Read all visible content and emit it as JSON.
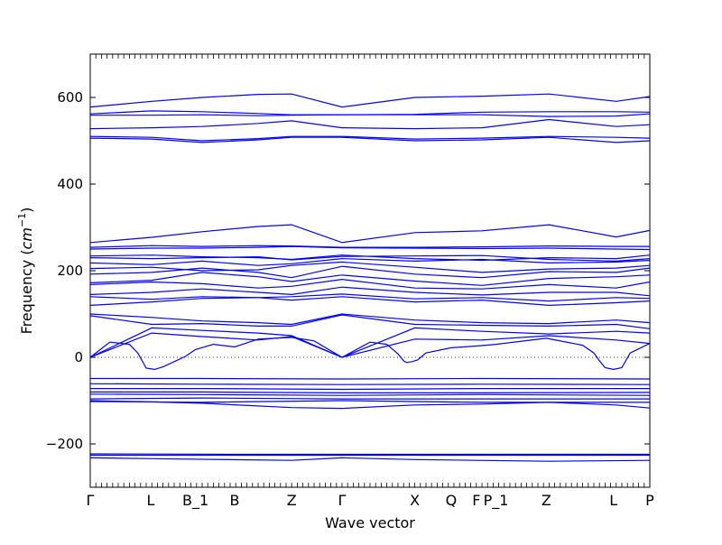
{
  "chart_data": {
    "type": "line",
    "title": "",
    "xlabel": "Wave vector",
    "ylabel_main": "Frequency (",
    "ylabel_unit": "cm",
    "ylabel_exp": "−1",
    "ylabel_close": ")",
    "ylim": [
      -300,
      700
    ],
    "yticks": [
      -200,
      0,
      200,
      400,
      600
    ],
    "ytick_labels": [
      "−200",
      "0",
      "200",
      "400",
      "600"
    ],
    "x_ticks": [
      {
        "x": 0.0,
        "label": "Γ"
      },
      {
        "x": 0.108,
        "label": "L"
      },
      {
        "x": 0.188,
        "label": "B_1"
      },
      {
        "x": 0.258,
        "label": "B"
      },
      {
        "x": 0.36,
        "label": "Z"
      },
      {
        "x": 0.45,
        "label": "Γ"
      },
      {
        "x": 0.58,
        "label": "X"
      },
      {
        "x": 0.645,
        "label": "Q"
      },
      {
        "x": 0.69,
        "label": "F"
      },
      {
        "x": 0.725,
        "label": "P_1"
      },
      {
        "x": 0.815,
        "label": "Z"
      },
      {
        "x": 0.935,
        "label": "L"
      },
      {
        "x": 1.0,
        "label": "P"
      }
    ],
    "zero_line": true,
    "line_color": "#0000ff",
    "series": [
      {
        "x": [
          0,
          0.11,
          0.2,
          0.3,
          0.36,
          0.45,
          0.58,
          0.7,
          0.82,
          0.94,
          1
        ],
        "y": [
          578,
          591,
          600,
          607,
          608,
          578,
          600,
          603,
          608,
          591,
          602
        ]
      },
      {
        "x": [
          0,
          0.11,
          0.2,
          0.3,
          0.36,
          0.45,
          0.58,
          0.7,
          0.82,
          0.94,
          1
        ],
        "y": [
          562,
          569,
          567,
          563,
          560,
          560,
          561,
          566,
          567,
          567,
          566
        ]
      },
      {
        "x": [
          0,
          0.11,
          0.2,
          0.3,
          0.36,
          0.45,
          0.58,
          0.7,
          0.82,
          0.94,
          1
        ],
        "y": [
          559,
          559,
          560,
          558,
          559,
          560,
          560,
          560,
          556,
          557,
          562
        ]
      },
      {
        "x": [
          0,
          0.11,
          0.2,
          0.3,
          0.36,
          0.45,
          0.58,
          0.7,
          0.82,
          0.94,
          1
        ],
        "y": [
          528,
          530,
          533,
          540,
          546,
          530,
          528,
          530,
          549,
          533,
          537
        ]
      },
      {
        "x": [
          0,
          0.11,
          0.2,
          0.3,
          0.36,
          0.45,
          0.58,
          0.7,
          0.82,
          0.94,
          1
        ],
        "y": [
          510,
          508,
          500,
          505,
          510,
          510,
          504,
          506,
          510,
          508,
          506
        ]
      },
      {
        "x": [
          0,
          0.11,
          0.2,
          0.3,
          0.36,
          0.45,
          0.58,
          0.7,
          0.82,
          0.94,
          1
        ],
        "y": [
          506,
          504,
          496,
          502,
          508,
          508,
          500,
          502,
          508,
          496,
          500
        ]
      },
      {
        "x": [
          0,
          0.11,
          0.2,
          0.3,
          0.36,
          0.45,
          0.58,
          0.7,
          0.82,
          0.94,
          1
        ],
        "y": [
          265,
          277,
          290,
          302,
          306,
          265,
          288,
          292,
          306,
          278,
          293
        ]
      },
      {
        "x": [
          0,
          0.11,
          0.2,
          0.3,
          0.36,
          0.45,
          0.58,
          0.7,
          0.82,
          0.94,
          1
        ],
        "y": [
          254,
          258,
          256,
          258,
          257,
          254,
          254,
          255,
          257,
          256,
          256
        ]
      },
      {
        "x": [
          0,
          0.11,
          0.2,
          0.3,
          0.36,
          0.45,
          0.58,
          0.7,
          0.82,
          0.94,
          1
        ],
        "y": [
          250,
          252,
          252,
          254,
          256,
          253,
          252,
          251,
          252,
          250,
          249
        ]
      },
      {
        "x": [
          0,
          0.11,
          0.2,
          0.3,
          0.36,
          0.45,
          0.58,
          0.7,
          0.82,
          0.94,
          1
        ],
        "y": [
          234,
          236,
          232,
          230,
          226,
          236,
          228,
          224,
          230,
          228,
          236
        ]
      },
      {
        "x": [
          0,
          0.11,
          0.2,
          0.3,
          0.36,
          0.45,
          0.58,
          0.7,
          0.82,
          0.94,
          1
        ],
        "y": [
          230,
          228,
          230,
          232,
          225,
          233,
          234,
          235,
          226,
          222,
          228
        ]
      },
      {
        "x": [
          0,
          0.11,
          0.2,
          0.3,
          0.36,
          0.45,
          0.58,
          0.7,
          0.82,
          0.94,
          1
        ],
        "y": [
          218,
          214,
          222,
          212,
          216,
          228,
          222,
          226,
          218,
          220,
          224
        ]
      },
      {
        "x": [
          0,
          0.11,
          0.2,
          0.3,
          0.36,
          0.45,
          0.58,
          0.7,
          0.82,
          0.94,
          1
        ],
        "y": [
          205,
          208,
          200,
          202,
          212,
          220,
          208,
          196,
          204,
          206,
          212
        ]
      },
      {
        "x": [
          0,
          0.11,
          0.2,
          0.3,
          0.36,
          0.45,
          0.58,
          0.7,
          0.82,
          0.94,
          1
        ],
        "y": [
          192,
          196,
          206,
          196,
          184,
          210,
          192,
          184,
          198,
          196,
          206
        ]
      },
      {
        "x": [
          0,
          0.11,
          0.2,
          0.3,
          0.36,
          0.45,
          0.58,
          0.7,
          0.82,
          0.94,
          1
        ],
        "y": [
          172,
          178,
          196,
          186,
          175,
          190,
          176,
          166,
          182,
          186,
          190
        ]
      },
      {
        "x": [
          0,
          0.11,
          0.2,
          0.3,
          0.36,
          0.45,
          0.58,
          0.7,
          0.82,
          0.94,
          1
        ],
        "y": [
          168,
          174,
          170,
          160,
          164,
          180,
          160,
          158,
          168,
          160,
          174
        ]
      },
      {
        "x": [
          0,
          0.11,
          0.2,
          0.3,
          0.36,
          0.45,
          0.58,
          0.7,
          0.82,
          0.94,
          1
        ],
        "y": [
          145,
          150,
          158,
          150,
          145,
          162,
          150,
          144,
          150,
          150,
          142
        ]
      },
      {
        "x": [
          0,
          0.11,
          0.2,
          0.3,
          0.36,
          0.45,
          0.58,
          0.7,
          0.82,
          0.94,
          1
        ],
        "y": [
          140,
          134,
          140,
          138,
          140,
          146,
          135,
          138,
          130,
          138,
          136
        ]
      },
      {
        "x": [
          0,
          0.11,
          0.2,
          0.3,
          0.36,
          0.45,
          0.58,
          0.7,
          0.82,
          0.94,
          1
        ],
        "y": [
          120,
          128,
          136,
          138,
          132,
          140,
          128,
          132,
          120,
          126,
          130
        ]
      },
      {
        "x": [
          0,
          0.11,
          0.2,
          0.3,
          0.36,
          0.45,
          0.58,
          0.7,
          0.82,
          0.94,
          1
        ],
        "y": [
          100,
          92,
          84,
          80,
          76,
          100,
          86,
          80,
          78,
          86,
          80
        ]
      },
      {
        "x": [
          0,
          0.11,
          0.2,
          0.3,
          0.36,
          0.45,
          0.58,
          0.7,
          0.82,
          0.94,
          1
        ],
        "y": [
          96,
          76,
          78,
          72,
          72,
          98,
          76,
          74,
          72,
          76,
          66
        ]
      },
      {
        "x": [
          0,
          0.11,
          0.2,
          0.3,
          0.36,
          0.45,
          0.58,
          0.7,
          0.82,
          0.94,
          1
        ],
        "y": [
          0,
          68,
          62,
          56,
          50,
          0,
          68,
          60,
          54,
          60,
          56
        ]
      },
      {
        "x": [
          0,
          0.11,
          0.2,
          0.3,
          0.36,
          0.45,
          0.58,
          0.7,
          0.82,
          0.94,
          1
        ],
        "y": [
          0,
          56,
          48,
          40,
          48,
          0,
          42,
          40,
          50,
          40,
          32
        ]
      },
      {
        "x": [
          0,
          0.035,
          0.07,
          0.085,
          0.1,
          0.115,
          0.13,
          0.15,
          0.17,
          0.188,
          0.22,
          0.258,
          0.3,
          0.36,
          0.4,
          0.45,
          0.5,
          0.53,
          0.55,
          0.56,
          0.565,
          0.575,
          0.585,
          0.6,
          0.645,
          0.69,
          0.725,
          0.815,
          0.88,
          0.9,
          0.91,
          0.92,
          0.935,
          0.95,
          0.965,
          1
        ],
        "y": [
          0,
          35,
          30,
          10,
          -25,
          -28,
          -22,
          -10,
          2,
          18,
          30,
          24,
          42,
          46,
          38,
          0,
          35,
          30,
          8,
          -8,
          -12,
          -10,
          -6,
          10,
          22,
          26,
          30,
          44,
          28,
          10,
          -8,
          -24,
          -28,
          -24,
          10,
          32
        ]
      },
      {
        "x": [
          0,
          0.2,
          0.45,
          0.7,
          1
        ],
        "y": [
          -49,
          -49,
          -50,
          -49,
          -50
        ]
      },
      {
        "x": [
          0,
          0.2,
          0.45,
          0.7,
          1
        ],
        "y": [
          -61,
          -62,
          -63,
          -62,
          -63
        ]
      },
      {
        "x": [
          0,
          0.2,
          0.45,
          0.7,
          1
        ],
        "y": [
          -72,
          -72,
          -74,
          -72,
          -72
        ]
      },
      {
        "x": [
          0,
          0.2,
          0.45,
          0.7,
          1
        ],
        "y": [
          -80,
          -80,
          -82,
          -82,
          -81
        ]
      },
      {
        "x": [
          0,
          0.2,
          0.45,
          0.7,
          1
        ],
        "y": [
          -85,
          -86,
          -88,
          -86,
          -88
        ]
      },
      {
        "x": [
          0,
          0.2,
          0.45,
          0.7,
          1
        ],
        "y": [
          -96,
          -94,
          -96,
          -96,
          -96
        ]
      },
      {
        "x": [
          0,
          0.11,
          0.2,
          0.36,
          0.45,
          0.58,
          0.7,
          0.82,
          0.94,
          1
        ],
        "y": [
          -100,
          -103,
          -106,
          -116,
          -118,
          -110,
          -108,
          -104,
          -110,
          -117
        ]
      },
      {
        "x": [
          0,
          0.2,
          0.45,
          0.7,
          1
        ],
        "y": [
          -102,
          -104,
          -100,
          -104,
          -104
        ]
      },
      {
        "x": [
          0,
          0.3,
          0.6,
          1
        ],
        "y": [
          -223,
          -224,
          -224,
          -224
        ]
      },
      {
        "x": [
          0,
          0.3,
          0.6,
          1
        ],
        "y": [
          -226,
          -226,
          -226,
          -226
        ]
      },
      {
        "x": [
          0,
          0.11,
          0.36,
          0.45,
          0.58,
          0.82,
          1
        ],
        "y": [
          -232,
          -234,
          -238,
          -232,
          -236,
          -240,
          -238
        ]
      }
    ]
  }
}
